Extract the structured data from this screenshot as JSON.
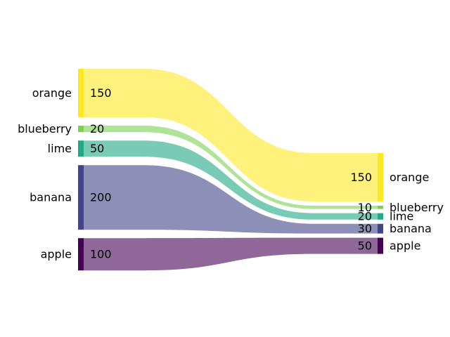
{
  "chart_data": {
    "type": "sankey",
    "title": "",
    "left": {
      "nodes": [
        {
          "name": "orange",
          "value": 150,
          "color": "#fde725"
        },
        {
          "name": "blueberry",
          "value": 20,
          "color": "#7ad151"
        },
        {
          "name": "lime",
          "value": 50,
          "color": "#22a884"
        },
        {
          "name": "banana",
          "value": 200,
          "color": "#414487"
        },
        {
          "name": "apple",
          "value": 100,
          "color": "#440154"
        }
      ]
    },
    "right": {
      "nodes": [
        {
          "name": "orange",
          "value": 150,
          "color": "#fde725"
        },
        {
          "name": "blueberry",
          "value": 10,
          "color": "#7ad151"
        },
        {
          "name": "lime",
          "value": 20,
          "color": "#22a884"
        },
        {
          "name": "banana",
          "value": 30,
          "color": "#414487"
        },
        {
          "name": "apple",
          "value": 50,
          "color": "#440154"
        }
      ]
    },
    "flows": [
      {
        "source": "orange",
        "target": "orange",
        "left_value": 150,
        "right_value": 150
      },
      {
        "source": "blueberry",
        "target": "blueberry",
        "left_value": 20,
        "right_value": 10
      },
      {
        "source": "lime",
        "target": "lime",
        "left_value": 50,
        "right_value": 20
      },
      {
        "source": "banana",
        "target": "banana",
        "left_value": 200,
        "right_value": 30
      },
      {
        "source": "apple",
        "target": "apple",
        "left_value": 100,
        "right_value": 50
      }
    ]
  }
}
